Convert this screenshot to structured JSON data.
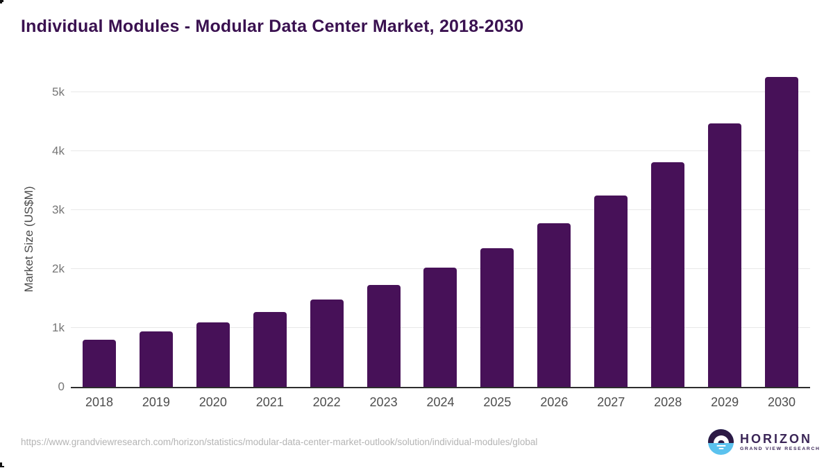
{
  "chart_data": {
    "type": "bar",
    "title": "Individual Modules - Modular Data Center Market, 2018-2030",
    "categories": [
      "2018",
      "2019",
      "2020",
      "2021",
      "2022",
      "2023",
      "2024",
      "2025",
      "2026",
      "2027",
      "2028",
      "2029",
      "2030"
    ],
    "values": [
      795,
      945,
      1090,
      1275,
      1480,
      1735,
      2020,
      2355,
      2775,
      3245,
      3810,
      4465,
      5260
    ],
    "xlabel": "",
    "ylabel": "Market Size (US$M)",
    "ylim": [
      0,
      5410
    ],
    "yticks": [
      {
        "value": 0,
        "label": "0"
      },
      {
        "value": 1000,
        "label": "1k"
      },
      {
        "value": 2000,
        "label": "2k"
      },
      {
        "value": 3000,
        "label": "3k"
      },
      {
        "value": 4000,
        "label": "4k"
      },
      {
        "value": 5000,
        "label": "5k"
      }
    ],
    "grid": true,
    "legend": false,
    "bar_color_hex": "#471158"
  },
  "footer": {
    "source_url": "https://www.grandviewresearch.com/horizon/statistics/modular-data-center-market-outlook/solution/individual-modules/global",
    "logo": {
      "name": "HORIZON",
      "subtitle": "GRAND VIEW RESEARCH"
    }
  },
  "colors": {
    "title": "#3a1150",
    "bar": "#471158",
    "axis_line": "#2d2d2d",
    "gridline": "#e8e8e8",
    "x_tick": "#4d4d4d",
    "y_tick": "#757575",
    "y_axis_title": "#4a4a4a",
    "url_text": "#b4b4b4",
    "logo_purple": "#2c1a45",
    "logo_blue": "#5bc2ee",
    "logo_text": "#3b2657"
  }
}
